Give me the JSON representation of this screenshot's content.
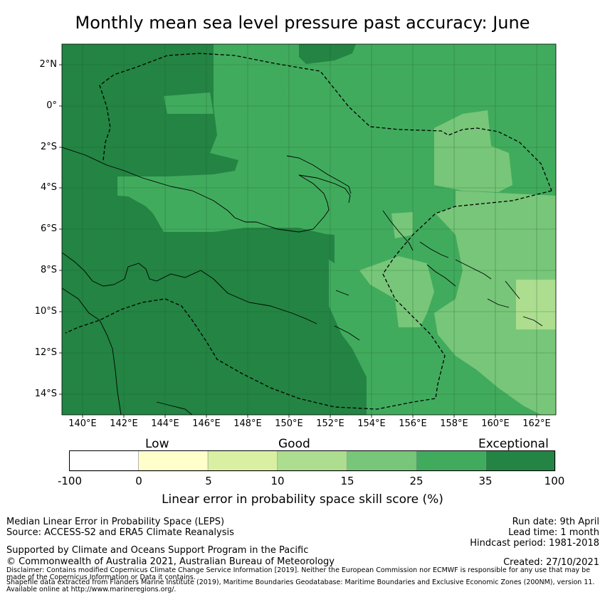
{
  "title": "Monthly mean sea level pressure past accuracy: June",
  "map": {
    "lat_ticks": [
      "2°N",
      "0°",
      "2°S",
      "4°S",
      "6°S",
      "8°S",
      "10°S",
      "12°S",
      "14°S"
    ],
    "lon_ticks": [
      "140°E",
      "142°E",
      "144°E",
      "146°E",
      "148°E",
      "150°E",
      "152°E",
      "154°E",
      "156°E",
      "158°E",
      "160°E",
      "162°E"
    ],
    "lon_range": [
      139,
      163
    ],
    "lat_range": [
      -15,
      3
    ]
  },
  "colorbar": {
    "categories": [
      "Low",
      "Good",
      "Exceptional"
    ],
    "ticks": [
      "-100",
      "0",
      "5",
      "10",
      "15",
      "25",
      "35",
      "100"
    ],
    "colors": [
      "#ffffff",
      "#ffffcc",
      "#d9f0a3",
      "#addd8e",
      "#78c679",
      "#41ab5d",
      "#238443"
    ],
    "label": "Linear error in probability space skill score (%)"
  },
  "footer": {
    "left1": "Median Linear Error in Probability Space (LEPS)",
    "left2": "Source: ACCESS-S2 and ERA5 Climate Reanalysis",
    "support": "Supported by Climate and Oceans Support Program in the Pacific",
    "copyright": "© Commonwealth of Australia 2021, Australian Bureau of Meteorology",
    "run_date": "Run date: 9th April",
    "lead_time": "Lead time: 1 month",
    "hindcast": "Hindcast period: 1981-2018",
    "created": "Created: 27/10/2021",
    "disclaimer": "Disclaimer: Contains modified Copernicus Climate Change Service Information [2019]. Neither the European Commission nor ECMWF is responsible for any use that may be made of the Copernicus Information or Data it contains.",
    "shapefile": "Shapefile data extracted from Flanders Marine Institute (2019), Maritime Boundaries Geodatabase: Maritime Boundaries and Exclusive Economic Zones (200NM), version 11. Available online at http://www.marineregions.org/."
  }
}
